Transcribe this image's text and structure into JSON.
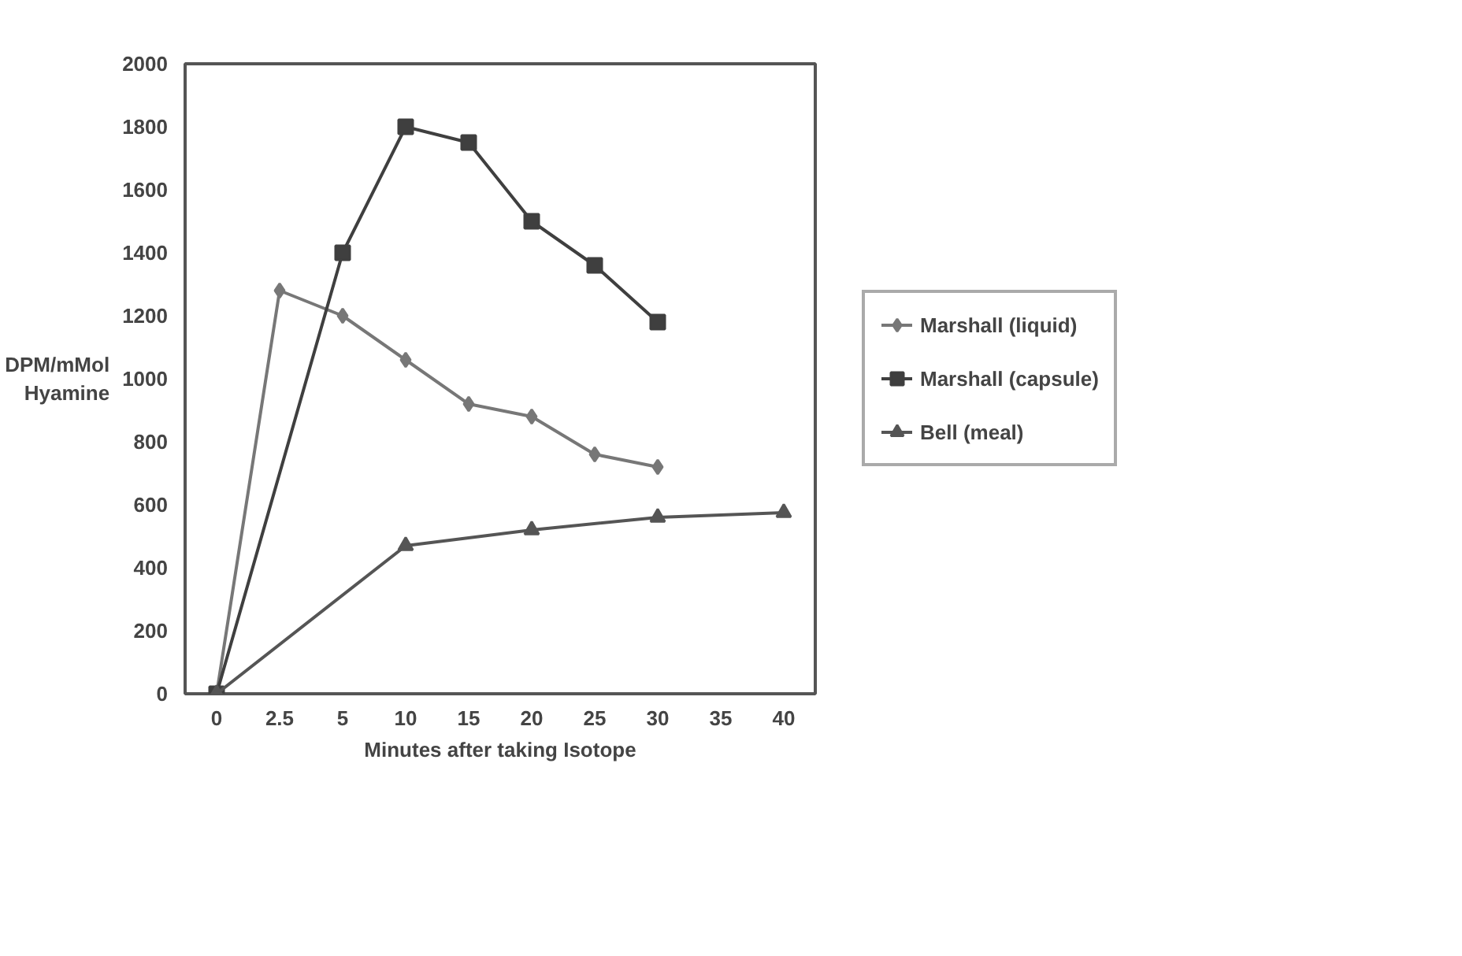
{
  "chart_data": {
    "type": "line",
    "xlabel": "Minutes after taking Isotope",
    "ylabel": "DPM/mMol Hyamine",
    "categories": [
      "0",
      "2.5",
      "5",
      "10",
      "15",
      "20",
      "25",
      "30",
      "35",
      "40"
    ],
    "ylim": [
      0,
      2000
    ],
    "yticks": [
      0,
      200,
      400,
      600,
      800,
      1000,
      1200,
      1400,
      1600,
      1800,
      2000
    ],
    "grid": false,
    "legend": "right",
    "series": [
      {
        "name": "Marshall (liquid)",
        "color": "#777777",
        "marker": "diamond",
        "x": [
          "0",
          "2.5",
          "5",
          "10",
          "15",
          "20",
          "25",
          "30"
        ],
        "values": [
          0,
          1280,
          1200,
          1060,
          920,
          880,
          760,
          720
        ]
      },
      {
        "name": "Marshall (capsule)",
        "color": "#3f3f3f",
        "marker": "square",
        "x": [
          "0",
          "5",
          "10",
          "15",
          "20",
          "25",
          "30"
        ],
        "values": [
          0,
          1400,
          1800,
          1750,
          1500,
          1360,
          1180
        ]
      },
      {
        "name": "Bell (meal)",
        "color": "#555555",
        "marker": "triangle",
        "x": [
          "0",
          "10",
          "20",
          "30",
          "40"
        ],
        "values": [
          0,
          470,
          520,
          560,
          575
        ]
      }
    ]
  }
}
